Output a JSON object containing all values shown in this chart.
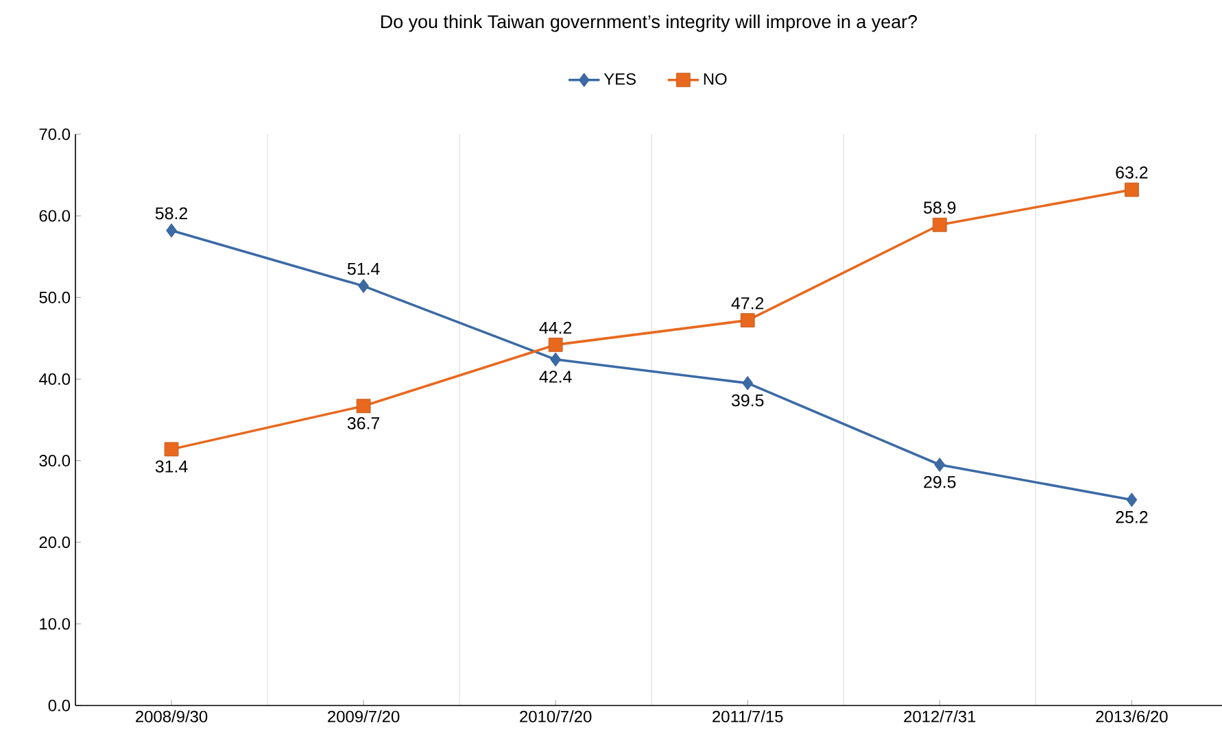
{
  "chart_data": {
    "type": "line",
    "title": "Do you think Taiwan government’s integrity will improve in a year?",
    "categories": [
      "2008/9/30",
      "2009/7/20",
      "2010/7/20",
      "2011/7/15",
      "2012/7/31",
      "2013/6/20"
    ],
    "series": [
      {
        "name": "YES",
        "color": "#3b6aa6",
        "marker": "diamond",
        "values": [
          58.2,
          51.4,
          42.4,
          39.5,
          29.5,
          25.2
        ]
      },
      {
        "name": "NO",
        "color": "#e8681e",
        "marker": "square",
        "values": [
          31.4,
          36.7,
          44.2,
          47.2,
          58.9,
          63.2
        ]
      }
    ],
    "ylim": [
      0,
      70
    ],
    "yticks": [
      {
        "value": 0,
        "label": "0.0"
      },
      {
        "value": 10,
        "label": "10.0"
      },
      {
        "value": 20,
        "label": "20.0"
      },
      {
        "value": 30,
        "label": "30.0"
      },
      {
        "value": 40,
        "label": "40.0"
      },
      {
        "value": 50,
        "label": "50.0"
      },
      {
        "value": 60,
        "label": "60.0"
      },
      {
        "value": 70,
        "label": "70.0"
      }
    ],
    "grid": "x",
    "legend": "top",
    "data_labels": true
  }
}
